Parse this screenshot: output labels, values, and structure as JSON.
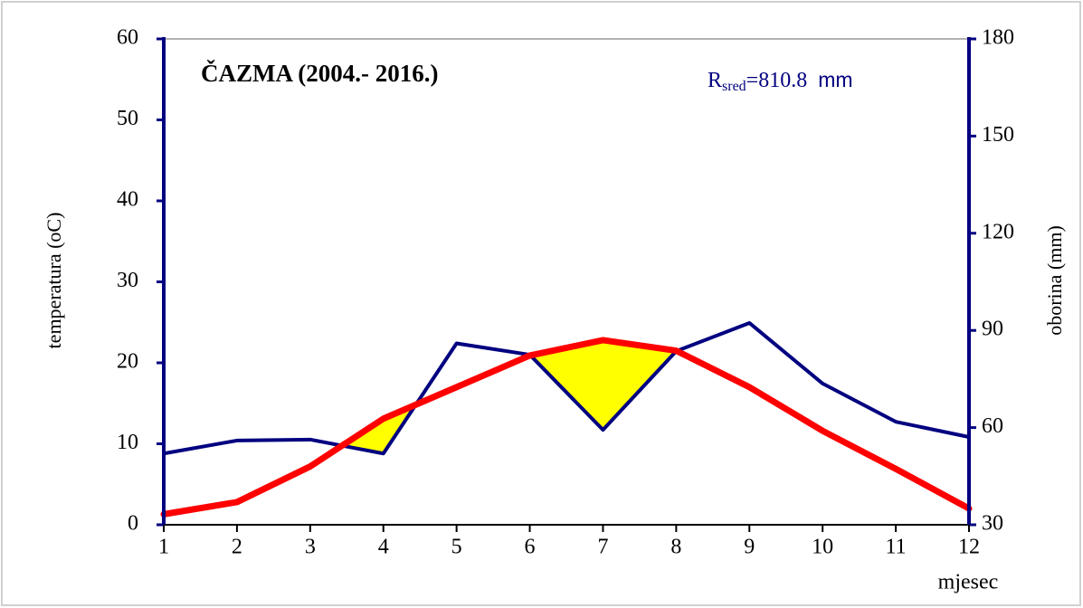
{
  "chart_data": {
    "type": "line",
    "title": "ČAZMA (2004.- 2016.)",
    "annotation": {
      "symbol": "R",
      "subscript": "sred",
      "text": "=810.8",
      "unit": "mm"
    },
    "xlabel": "mjesec",
    "ylabel": "temperatura (oC)",
    "y2label": "oborina (mm)",
    "x": [
      1,
      2,
      3,
      4,
      5,
      6,
      7,
      8,
      9,
      10,
      11,
      12
    ],
    "xlim": [
      1,
      12
    ],
    "xticks": [
      1,
      2,
      3,
      4,
      5,
      6,
      7,
      8,
      9,
      10,
      11,
      12
    ],
    "ylim": [
      0,
      60
    ],
    "yticks": [
      0,
      10,
      20,
      30,
      40,
      50,
      60
    ],
    "y2lim": [
      30,
      180
    ],
    "y2ticks": [
      30,
      60,
      90,
      120,
      150,
      180
    ],
    "fill_color": "#ffff00",
    "series": [
      {
        "color": "#ff0000",
        "axis": "y",
        "values": [
          1.3,
          2.8,
          7.2,
          13.1,
          17.0,
          20.9,
          22.8,
          21.5,
          17.0,
          11.6,
          6.9,
          2.0
        ]
      },
      {
        "color": "#000080",
        "axis": "y2",
        "values": [
          52,
          56,
          56.3,
          52,
          86,
          82.5,
          59.3,
          83.6,
          92.3,
          73.6,
          61.8,
          57.1
        ]
      }
    ]
  }
}
